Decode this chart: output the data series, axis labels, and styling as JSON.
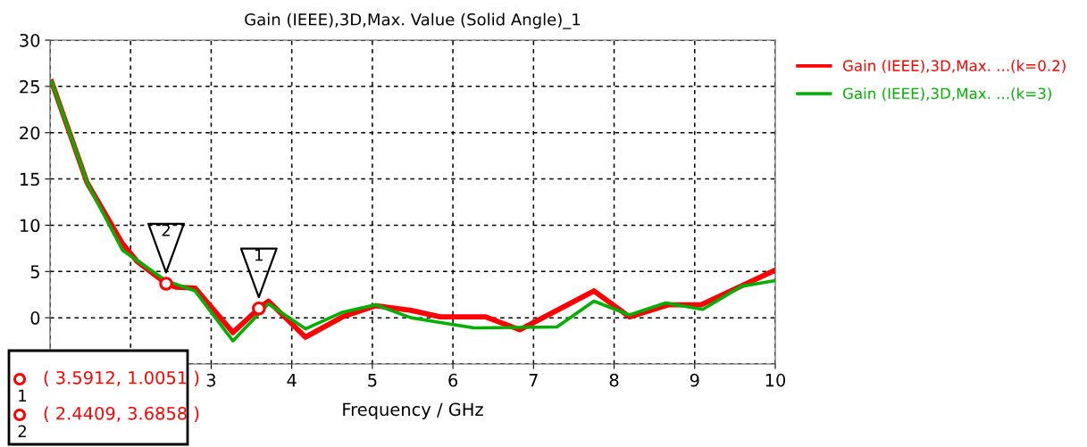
{
  "chart_data": {
    "type": "line",
    "title": "Gain (IEEE),3D,Max. Value (Solid Angle)_1",
    "xlabel": "Frequency / GHz",
    "series": [
      {
        "name": "Gain (IEEE),3D,Max. ...(k=0.2)",
        "color": "#ff0000",
        "x": [
          1.02,
          1.46,
          1.9,
          2.08,
          2.44,
          2.57,
          2.8,
          3.27,
          3.59,
          3.71,
          4.17,
          4.63,
          5.04,
          5.48,
          5.84,
          6.4,
          6.83,
          7.75,
          8.19,
          8.67,
          9.08,
          9.99
        ],
        "values": [
          25.5,
          14.6,
          8.0,
          6.1,
          3.7,
          3.3,
          3.2,
          -1.6,
          1.0,
          1.8,
          -2.1,
          0.1,
          1.3,
          0.8,
          0.1,
          0.1,
          -1.3,
          2.9,
          0.1,
          1.4,
          1.4,
          5.1
        ]
      },
      {
        "name": "Gain (IEEE),3D,Max. ...(k=3)",
        "color": "#00b000",
        "x": [
          1.02,
          1.46,
          1.9,
          2.44,
          2.8,
          3.27,
          3.71,
          4.17,
          4.63,
          5.04,
          5.48,
          6.26,
          7.29,
          7.75,
          8.19,
          8.64,
          9.1,
          9.58,
          9.99
        ],
        "values": [
          25.5,
          14.6,
          7.3,
          4.0,
          2.9,
          -2.5,
          1.5,
          -1.2,
          0.6,
          1.4,
          0.0,
          -1.1,
          -1.0,
          1.8,
          0.3,
          1.6,
          0.9,
          3.4,
          4.0
        ]
      }
    ],
    "xlim": [
      1,
      10
    ],
    "ylim": [
      -5,
      30
    ],
    "xticks": [
      {
        "value": 1,
        "label": null
      },
      {
        "value": 2,
        "label": null
      },
      3,
      4,
      5,
      6,
      7,
      8,
      9,
      10
    ],
    "yticks": [
      {
        "value": -5,
        "label": null
      },
      0,
      5,
      10,
      15,
      20,
      25,
      30
    ],
    "grid": true,
    "legend": "right",
    "marker": "none",
    "line_style": "solid",
    "annotations": [
      {
        "text": "1",
        "x": 3.5912,
        "y": 1.0051
      },
      {
        "text": "2",
        "x": 2.4409,
        "y": 3.6858
      },
      "( 3.5912, 1.0051 )",
      "( 2.4409, 3.6858 )"
    ]
  }
}
